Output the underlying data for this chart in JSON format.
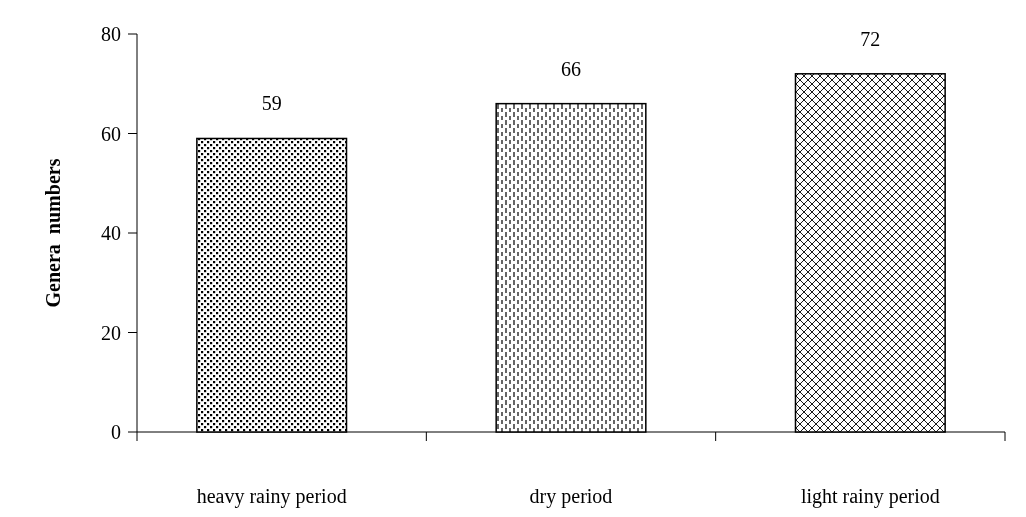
{
  "chart_data": {
    "type": "bar",
    "ylabel": "Genera  numbers",
    "categories": [
      "heavy rainy period",
      "dry period",
      "light rainy period"
    ],
    "values": [
      59,
      66,
      72
    ],
    "color": "#000000",
    "ylim": [
      0,
      80
    ],
    "yticks": [
      0,
      20,
      40,
      60,
      80
    ],
    "grid": false,
    "data_labels": true
  }
}
